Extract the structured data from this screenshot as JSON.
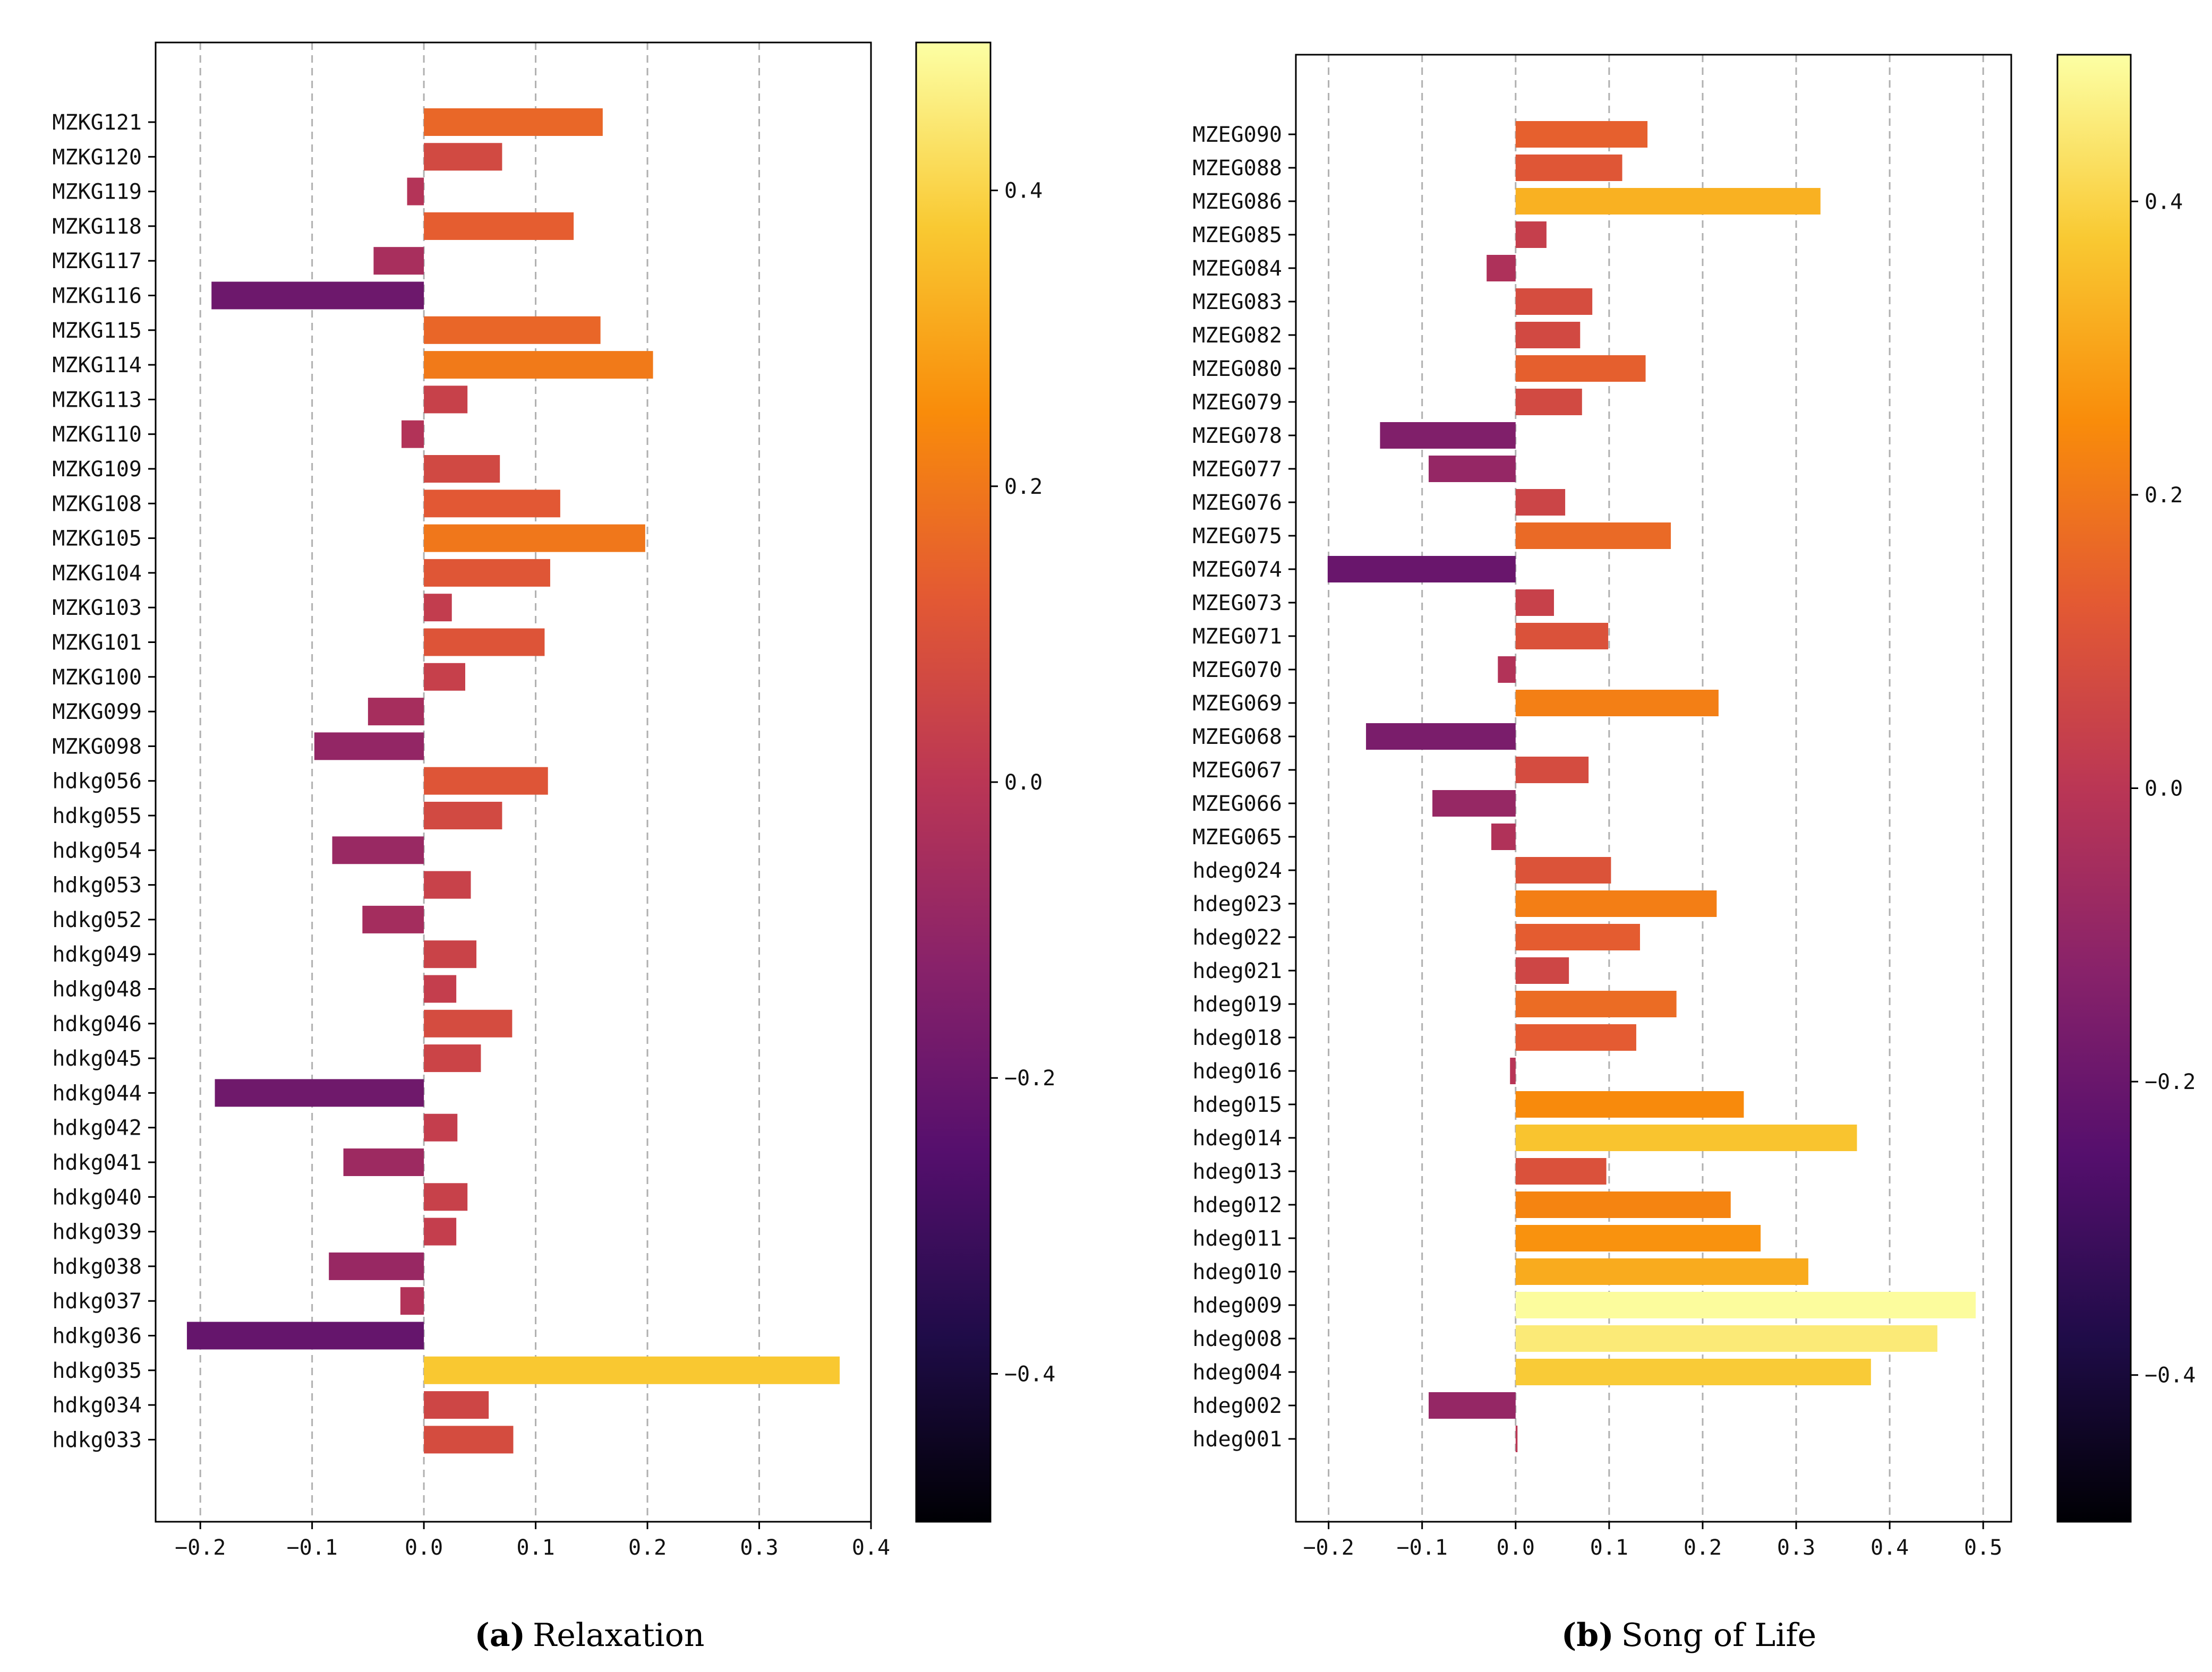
{
  "colormap": "inferno",
  "chart_data": [
    {
      "type": "bar",
      "orientation": "horizontal",
      "panel_letter": "(a)",
      "panel_title": "Relaxation",
      "xlim": [
        -0.24,
        0.4
      ],
      "xticks": [
        -0.2,
        -0.1,
        0.0,
        0.1,
        0.2,
        0.3,
        0.4
      ],
      "xtick_labels": [
        "−0.2",
        "−0.1",
        "0.0",
        "0.1",
        "0.2",
        "0.3",
        "0.4"
      ],
      "grid": "vertical dashed",
      "colorbar": {
        "range": [
          -0.5,
          0.5
        ],
        "ticks": [
          -0.4,
          -0.2,
          0.0,
          0.2,
          0.4
        ],
        "tick_labels": [
          "−0.4",
          "−0.2",
          "0.0",
          "0.2",
          "0.4"
        ]
      },
      "categories": [
        "MZKG121",
        "MZKG120",
        "MZKG119",
        "MZKG118",
        "MZKG117",
        "MZKG116",
        "MZKG115",
        "MZKG114",
        "MZKG113",
        "MZKG110",
        "MZKG109",
        "MZKG108",
        "MZKG105",
        "MZKG104",
        "MZKG103",
        "MZKG101",
        "MZKG100",
        "MZKG099",
        "MZKG098",
        "hdkg056",
        "hdkg055",
        "hdkg054",
        "hdkg053",
        "hdkg052",
        "hdkg049",
        "hdkg048",
        "hdkg046",
        "hdkg045",
        "hdkg044",
        "hdkg042",
        "hdkg041",
        "hdkg040",
        "hdkg039",
        "hdkg038",
        "hdkg037",
        "hdkg036",
        "hdkg035",
        "hdkg034",
        "hdkg033"
      ],
      "values": [
        0.16,
        0.07,
        -0.015,
        0.134,
        -0.045,
        -0.19,
        0.158,
        0.205,
        0.039,
        -0.02,
        0.068,
        0.122,
        0.198,
        0.113,
        0.025,
        0.108,
        0.037,
        -0.05,
        -0.098,
        0.111,
        0.07,
        -0.082,
        0.042,
        -0.055,
        0.047,
        0.029,
        0.079,
        0.051,
        -0.187,
        0.03,
        -0.072,
        0.039,
        0.029,
        -0.085,
        -0.021,
        -0.212,
        0.372,
        0.058,
        0.08
      ]
    },
    {
      "type": "bar",
      "orientation": "horizontal",
      "panel_letter": "(b)",
      "panel_title": "Song of Life",
      "xlim": [
        -0.235,
        0.53
      ],
      "xticks": [
        -0.2,
        -0.1,
        0.0,
        0.1,
        0.2,
        0.3,
        0.4,
        0.5
      ],
      "xtick_labels": [
        "−0.2",
        "−0.1",
        "0.0",
        "0.1",
        "0.2",
        "0.3",
        "0.4",
        "0.5"
      ],
      "grid": "vertical dashed",
      "colorbar": {
        "range": [
          -0.5,
          0.5
        ],
        "ticks": [
          -0.4,
          -0.2,
          0.0,
          0.2,
          0.4
        ],
        "tick_labels": [
          "−0.4",
          "−0.2",
          "0.0",
          "0.2",
          "0.4"
        ]
      },
      "categories": [
        "MZEG090",
        "MZEG088",
        "MZEG086",
        "MZEG085",
        "MZEG084",
        "MZEG083",
        "MZEG082",
        "MZEG080",
        "MZEG079",
        "MZEG078",
        "MZEG077",
        "MZEG076",
        "MZEG075",
        "MZEG074",
        "MZEG073",
        "MZEG071",
        "MZEG070",
        "MZEG069",
        "MZEG068",
        "MZEG067",
        "MZEG066",
        "MZEG065",
        "hdeg024",
        "hdeg023",
        "hdeg022",
        "hdeg021",
        "hdeg019",
        "hdeg018",
        "hdeg016",
        "hdeg015",
        "hdeg014",
        "hdeg013",
        "hdeg012",
        "hdeg011",
        "hdeg010",
        "hdeg009",
        "hdeg008",
        "hdeg004",
        "hdeg002",
        "hdeg001"
      ],
      "values": [
        0.141,
        0.114,
        0.326,
        0.033,
        -0.031,
        0.082,
        0.069,
        0.139,
        0.071,
        -0.145,
        -0.093,
        0.053,
        0.166,
        -0.201,
        0.041,
        0.099,
        -0.019,
        0.217,
        -0.16,
        0.078,
        -0.089,
        -0.026,
        0.102,
        0.215,
        0.133,
        0.057,
        0.172,
        0.129,
        -0.006,
        0.244,
        0.365,
        0.097,
        0.23,
        0.262,
        0.313,
        0.492,
        0.451,
        0.38,
        -0.093,
        0.002
      ]
    }
  ]
}
